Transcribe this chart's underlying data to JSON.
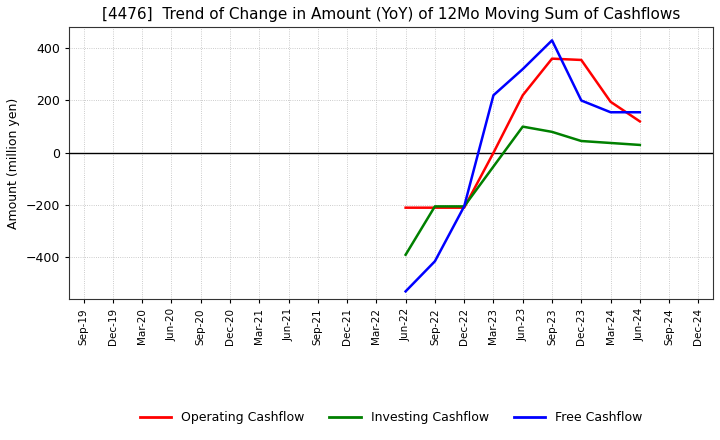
{
  "title": "[4476]  Trend of Change in Amount (YoY) of 12Mo Moving Sum of Cashflows",
  "ylabel": "Amount (million yen)",
  "title_fontsize": 11,
  "label_fontsize": 9,
  "x_labels": [
    "Sep-19",
    "Dec-19",
    "Mar-20",
    "Jun-20",
    "Sep-20",
    "Dec-20",
    "Mar-21",
    "Jun-21",
    "Sep-21",
    "Dec-21",
    "Mar-22",
    "Jun-22",
    "Sep-22",
    "Dec-22",
    "Mar-23",
    "Jun-23",
    "Sep-23",
    "Dec-23",
    "Mar-24",
    "Jun-24",
    "Sep-24",
    "Dec-24"
  ],
  "operating": {
    "x_indices": [
      11,
      12,
      13,
      14,
      15,
      16,
      17,
      18,
      19
    ],
    "y": [
      -210,
      -210,
      -210,
      0,
      220,
      360,
      355,
      195,
      120
    ],
    "color": "#ff0000"
  },
  "investing": {
    "x_indices": [
      11,
      12,
      13,
      15,
      16,
      17,
      19
    ],
    "y": [
      -390,
      -205,
      -205,
      100,
      80,
      45,
      30
    ],
    "color": "#008000"
  },
  "free": {
    "x_indices": [
      11,
      12,
      13,
      14,
      15,
      16,
      17,
      18,
      19
    ],
    "y": [
      -530,
      -415,
      -205,
      220,
      320,
      430,
      200,
      155,
      155
    ],
    "color": "#0000ff"
  },
  "ylim": [
    -560,
    480
  ],
  "yticks": [
    -400,
    -200,
    0,
    200,
    400
  ],
  "bg_color": "#ffffff",
  "grid_color": "#bbbbbb",
  "zero_line_color": "#000000",
  "legend_labels": [
    "Operating Cashflow",
    "Investing Cashflow",
    "Free Cashflow"
  ],
  "legend_colors": [
    "#ff0000",
    "#008000",
    "#0000ff"
  ]
}
